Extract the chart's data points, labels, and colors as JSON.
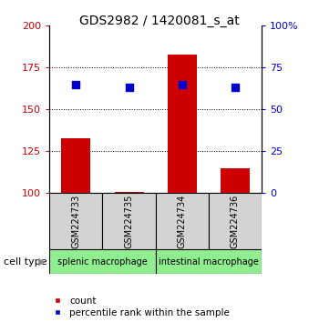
{
  "title": "GDS2982 / 1420081_s_at",
  "samples": [
    "GSM224733",
    "GSM224735",
    "GSM224734",
    "GSM224736"
  ],
  "count_values": [
    133,
    101,
    183,
    115
  ],
  "percentile_values": [
    65,
    63,
    65,
    63
  ],
  "ylim_left": [
    100,
    200
  ],
  "ylim_right": [
    0,
    100
  ],
  "yticks_left": [
    100,
    125,
    150,
    175,
    200
  ],
  "yticks_right": [
    0,
    25,
    50,
    75,
    100
  ],
  "ytick_labels_right": [
    "0",
    "25",
    "50",
    "75",
    "100%"
  ],
  "bar_color": "#cc0000",
  "square_color": "#0000cc",
  "group1_label": "splenic macrophage",
  "group2_label": "intestinal macrophage",
  "group_bg_color": "#90ee90",
  "sample_box_color": "#d3d3d3",
  "cell_type_label": "cell type",
  "legend_count_label": "count",
  "legend_pct_label": "percentile rank within the sample",
  "bar_bottom": 100,
  "bar_width": 0.55,
  "square_size": 40
}
